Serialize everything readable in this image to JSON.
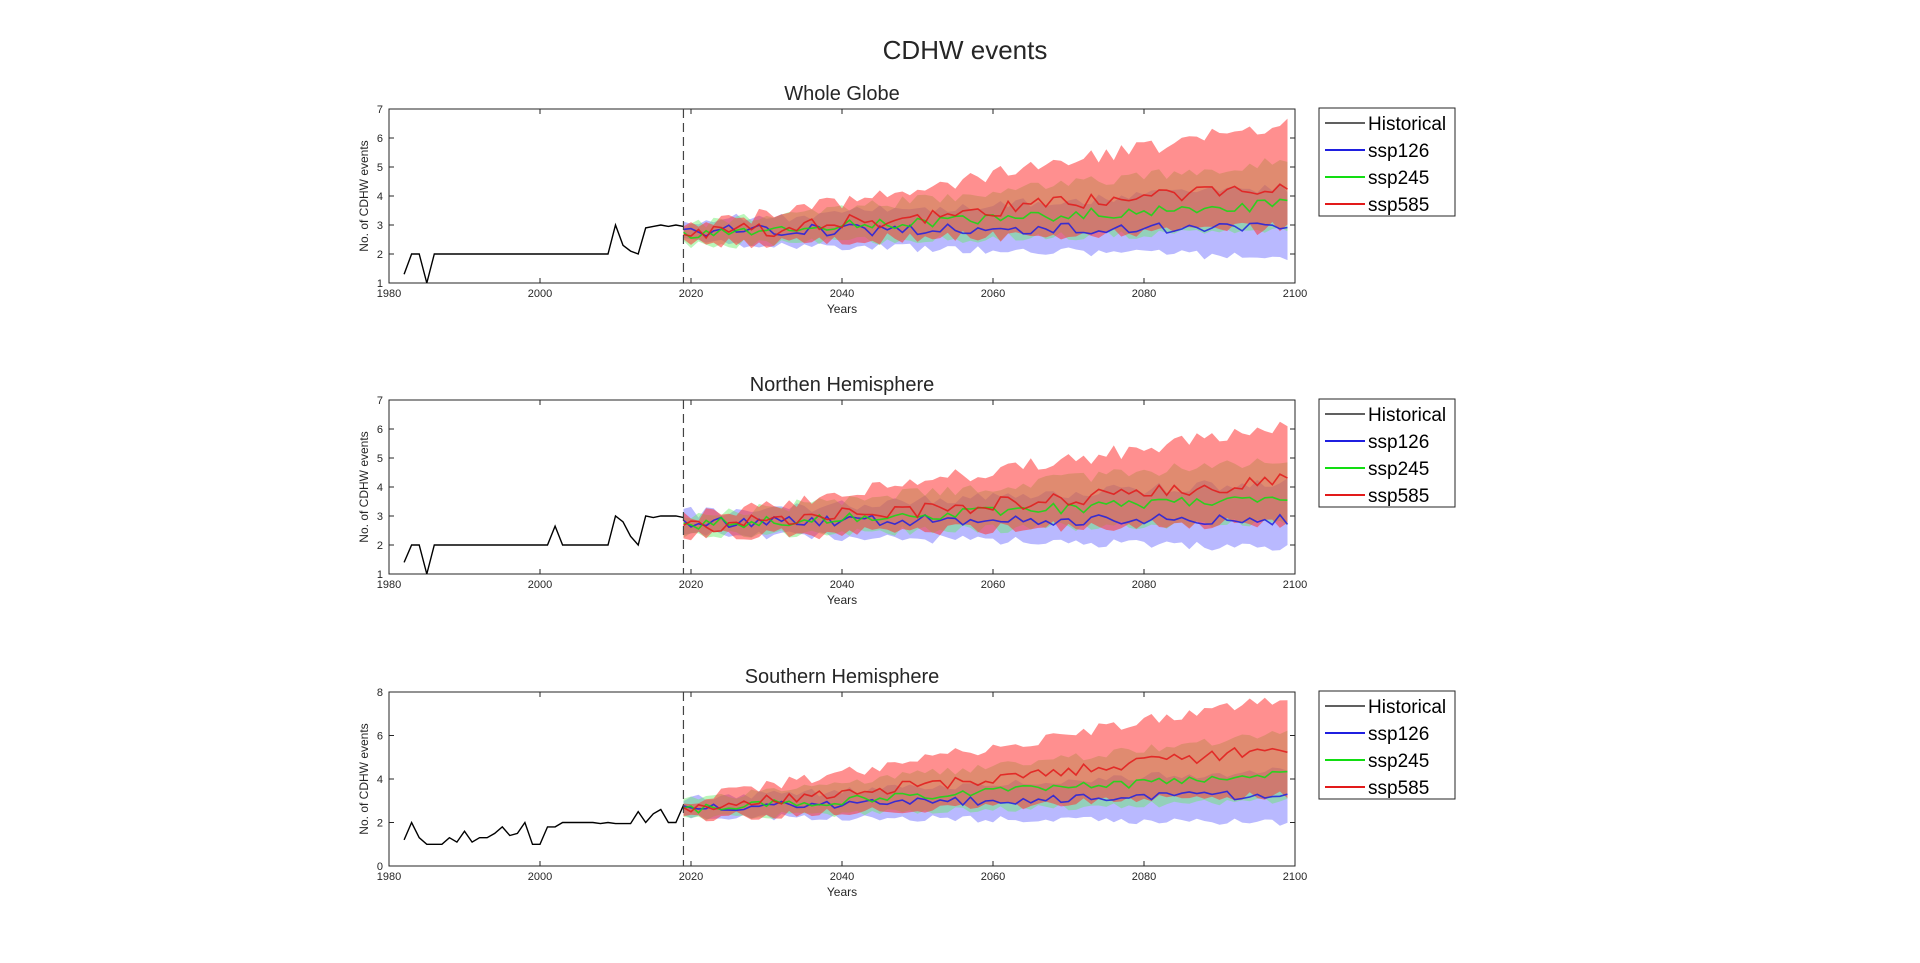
{
  "figure": {
    "title": "CDHW events"
  },
  "colors": {
    "historical": "#000000",
    "ssp126": "#1f1fe0",
    "ssp245": "#12dd12",
    "ssp585": "#e21a1a",
    "band_ssp126": "#8080ff",
    "band_ssp245": "#66ee66",
    "band_ssp585": "#ff3333",
    "axes": "#262626"
  },
  "chart_data": [
    {
      "type": "line",
      "title": "Whole Globe",
      "xlabel": "Years",
      "ylabel": "No. of CDHW events",
      "xlim": [
        1980,
        2100
      ],
      "ylim": [
        1,
        7
      ],
      "xticks": [
        1980,
        2000,
        2020,
        2040,
        2060,
        2080,
        2100
      ],
      "yticks": [
        1,
        2,
        3,
        4,
        5,
        6,
        7
      ],
      "divider_x": 2019,
      "legend": [
        "Historical",
        "ssp126",
        "ssp245",
        "ssp585"
      ],
      "legend_position": "outside-right",
      "historical": {
        "x": [
          1982,
          1983,
          1984,
          1985,
          1986,
          1987,
          1988,
          1989,
          1990,
          1991,
          1992,
          1993,
          1994,
          1995,
          1996,
          1997,
          1998,
          1999,
          2000,
          2001,
          2002,
          2003,
          2004,
          2005,
          2006,
          2007,
          2008,
          2009,
          2010,
          2011,
          2012,
          2013,
          2014,
          2015,
          2016,
          2017,
          2018,
          2019
        ],
        "y": [
          1.3,
          2,
          2,
          1,
          2,
          2,
          2,
          2,
          2,
          2,
          2,
          2,
          2,
          2,
          2,
          2,
          2,
          2,
          2,
          2,
          2,
          2,
          2,
          2,
          2,
          2,
          2,
          2,
          3,
          2.3,
          2.1,
          2,
          2.9,
          2.95,
          3,
          2.95,
          3,
          2.95
        ]
      },
      "ssp126": {
        "start": 2019,
        "end": 2099,
        "mean_start": 2.8,
        "mean_end": 2.9,
        "lower_start": 2.4,
        "lower_end": 1.9,
        "upper_start": 3.1,
        "upper_end": 4.3
      },
      "ssp245": {
        "start": 2019,
        "end": 2099,
        "mean_start": 2.7,
        "mean_end": 3.7,
        "lower_start": 2.3,
        "lower_end": 2.8,
        "upper_start": 3.0,
        "upper_end": 5.2
      },
      "ssp585": {
        "start": 2019,
        "end": 2099,
        "mean_start": 2.6,
        "mean_end": 4.4,
        "lower_start": 2.3,
        "lower_end": 2.9,
        "upper_start": 2.9,
        "upper_end": 6.5
      }
    },
    {
      "type": "line",
      "title": "Northen Hemisphere",
      "xlabel": "Years",
      "ylabel": "No. of CDHW events",
      "xlim": [
        1980,
        2100
      ],
      "ylim": [
        1,
        7
      ],
      "xticks": [
        1980,
        2000,
        2020,
        2040,
        2060,
        2080,
        2100
      ],
      "yticks": [
        1,
        2,
        3,
        4,
        5,
        6,
        7
      ],
      "divider_x": 2019,
      "legend": [
        "Historical",
        "ssp126",
        "ssp245",
        "ssp585"
      ],
      "legend_position": "outside-right",
      "historical": {
        "x": [
          1982,
          1983,
          1984,
          1985,
          1986,
          1987,
          1988,
          1989,
          1990,
          1991,
          1992,
          1993,
          1994,
          1995,
          1996,
          1997,
          1998,
          1999,
          2000,
          2001,
          2002,
          2003,
          2004,
          2005,
          2006,
          2007,
          2008,
          2009,
          2010,
          2011,
          2012,
          2013,
          2014,
          2015,
          2016,
          2017,
          2018,
          2019
        ],
        "y": [
          1.4,
          2,
          2,
          1,
          2,
          2,
          2,
          2,
          2,
          2,
          2,
          2,
          2,
          2,
          2,
          2,
          2,
          2,
          2,
          2,
          2.65,
          2,
          2,
          2,
          2,
          2,
          2,
          2,
          3,
          2.8,
          2.3,
          2,
          3,
          2.95,
          3,
          3,
          3,
          2.95
        ]
      },
      "ssp126": {
        "start": 2019,
        "end": 2099,
        "mean_start": 2.8,
        "mean_end": 2.9,
        "lower_start": 2.4,
        "lower_end": 1.9,
        "upper_start": 3.1,
        "upper_end": 4.2
      },
      "ssp245": {
        "start": 2019,
        "end": 2099,
        "mean_start": 2.7,
        "mean_end": 3.6,
        "lower_start": 2.3,
        "lower_end": 2.8,
        "upper_start": 3.0,
        "upper_end": 5.0
      },
      "ssp585": {
        "start": 2019,
        "end": 2099,
        "mean_start": 2.6,
        "mean_end": 4.2,
        "lower_start": 2.3,
        "lower_end": 2.8,
        "upper_start": 2.9,
        "upper_end": 6.1
      }
    },
    {
      "type": "line",
      "title": "Southern Hemisphere",
      "xlabel": "Years",
      "ylabel": "No. of CDHW events",
      "xlim": [
        1980,
        2100
      ],
      "ylim": [
        0,
        8
      ],
      "xticks": [
        1980,
        2000,
        2020,
        2040,
        2060,
        2080,
        2100
      ],
      "yticks": [
        0,
        2,
        4,
        6,
        8
      ],
      "divider_x": 2019,
      "legend": [
        "Historical",
        "ssp126",
        "ssp245",
        "ssp585"
      ],
      "legend_position": "outside-right",
      "historical": {
        "x": [
          1982,
          1983,
          1984,
          1985,
          1986,
          1987,
          1988,
          1989,
          1990,
          1991,
          1992,
          1993,
          1994,
          1995,
          1996,
          1997,
          1998,
          1999,
          2000,
          2001,
          2002,
          2003,
          2004,
          2005,
          2006,
          2007,
          2008,
          2009,
          2010,
          2011,
          2012,
          2013,
          2014,
          2015,
          2016,
          2017,
          2018,
          2019
        ],
        "y": [
          1.2,
          2,
          1.3,
          1,
          1,
          1,
          1.3,
          1.1,
          1.6,
          1.1,
          1.3,
          1.3,
          1.5,
          1.8,
          1.4,
          1.5,
          2,
          1,
          1,
          1.8,
          1.8,
          2,
          2,
          2,
          2,
          2,
          1.95,
          2,
          1.95,
          1.95,
          1.95,
          2.5,
          2,
          2.4,
          2.6,
          2,
          2,
          2.8
        ]
      },
      "ssp126": {
        "start": 2019,
        "end": 2099,
        "mean_start": 2.7,
        "mean_end": 3.3,
        "lower_start": 2.3,
        "lower_end": 2.0,
        "upper_start": 3.1,
        "upper_end": 4.4
      },
      "ssp245": {
        "start": 2019,
        "end": 2099,
        "mean_start": 2.6,
        "mean_end": 4.2,
        "lower_start": 2.2,
        "lower_end": 3.0,
        "upper_start": 3.0,
        "upper_end": 6.1
      },
      "ssp585": {
        "start": 2019,
        "end": 2099,
        "mean_start": 2.6,
        "mean_end": 5.4,
        "lower_start": 2.2,
        "lower_end": 3.3,
        "upper_start": 3.0,
        "upper_end": 7.8
      }
    }
  ]
}
